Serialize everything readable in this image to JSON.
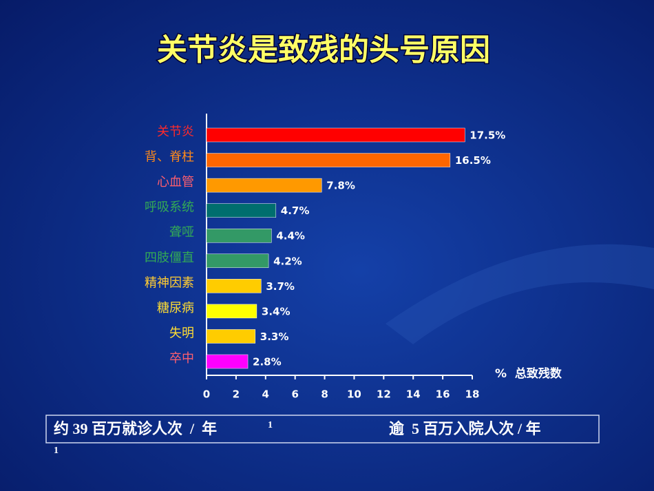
{
  "chart_data": {
    "type": "bar",
    "orientation": "horizontal",
    "title": "关节炎是致残的头号原因",
    "categories": [
      "关节炎",
      "背、脊柱",
      "心血管",
      "呼吸系统",
      "聋哑",
      "四肢僵直",
      "精神因素",
      "糖尿病",
      "失明",
      "卒中"
    ],
    "values": [
      17.5,
      16.5,
      7.8,
      4.7,
      4.4,
      4.2,
      3.7,
      3.4,
      3.3,
      2.8
    ],
    "value_labels": [
      "17.5%",
      "16.5%",
      "7.8%",
      "4.7%",
      "4.4%",
      "4.2%",
      "3.7%",
      "3.4%",
      "3.3%",
      "2.8%"
    ],
    "colors": [
      "#ff0000",
      "#ff6600",
      "#ff9900",
      "#006e6e",
      "#339966",
      "#339966",
      "#ffcc00",
      "#ffff00",
      "#ffcc00",
      "#ff00ff"
    ],
    "label_colors": [
      "#ff2a2a",
      "#ff8a1a",
      "#ff5f6f",
      "#33aa55",
      "#33aa55",
      "#33aa55",
      "#ffcc33",
      "#ffdd33",
      "#ffdd33",
      "#ff5f6f"
    ],
    "xlabel": "%  总致残数",
    "xlim": [
      0,
      18
    ],
    "xticks": [
      0,
      2,
      4,
      6,
      8,
      10,
      12,
      14,
      16,
      18
    ]
  },
  "footer": {
    "left": {
      "text": "约 39 百万就诊人次  /  年",
      "note": "1"
    },
    "right": {
      "text": "逾  5 百万入院人次 / 年",
      "note": "1"
    }
  }
}
